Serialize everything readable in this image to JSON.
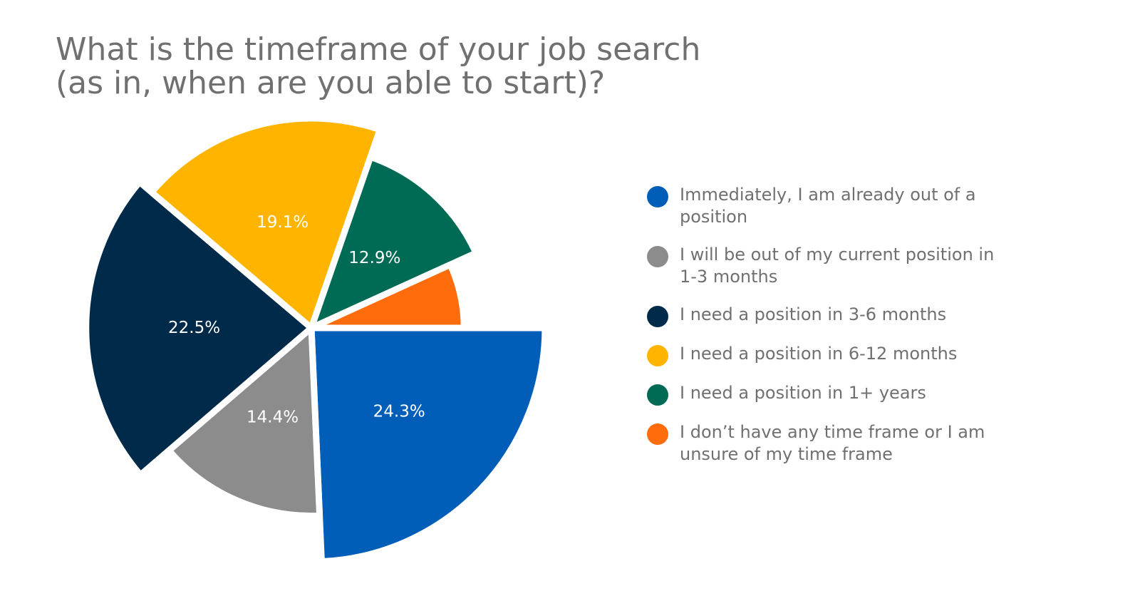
{
  "chart_data": {
    "type": "pie",
    "title": [
      "What is the timeframe of your job search",
      "(as in, when are you able to start)?"
    ],
    "categories": [
      "Immediately, I am already out of a position",
      "I will be out of my current position in 1-3 months",
      "I need a position in 3-6 months",
      "I need a position in 6-12 months",
      "I need a position in 1+ years",
      "I don’t have any time frame or I am unsure of my time frame"
    ],
    "values": [
      24.3,
      14.4,
      22.5,
      19.1,
      12.9,
      6.8
    ],
    "value_labels": [
      "24.3%",
      "14.4%",
      "22.5%",
      "19.1%",
      "12.9%",
      null
    ],
    "colors": [
      "#005eb8",
      "#8c8c8c",
      "#002a4a",
      "#ffb500",
      "#006b54",
      "#ff6c0c"
    ],
    "legend": "right"
  }
}
